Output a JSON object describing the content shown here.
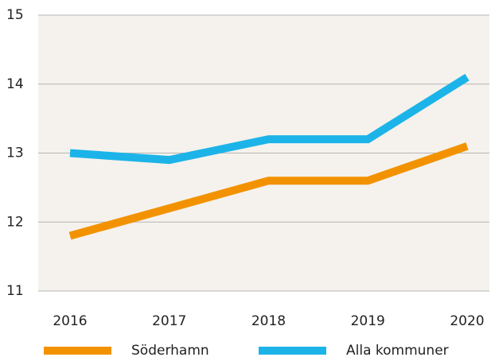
{
  "chart_data": {
    "type": "line",
    "categories": [
      "2016",
      "2017",
      "2018",
      "2019",
      "2020"
    ],
    "series": [
      {
        "name": "Söderhamn",
        "color": "#f39200",
        "values": [
          11.8,
          12.2,
          12.6,
          12.6,
          13.1
        ]
      },
      {
        "name": "Alla kommuner",
        "color": "#1cb4e8",
        "values": [
          13.0,
          12.9,
          13.2,
          13.2,
          14.1
        ]
      }
    ],
    "ylim": [
      11,
      15
    ],
    "yticks": [
      11,
      12,
      13,
      14,
      15
    ],
    "grid": true
  }
}
